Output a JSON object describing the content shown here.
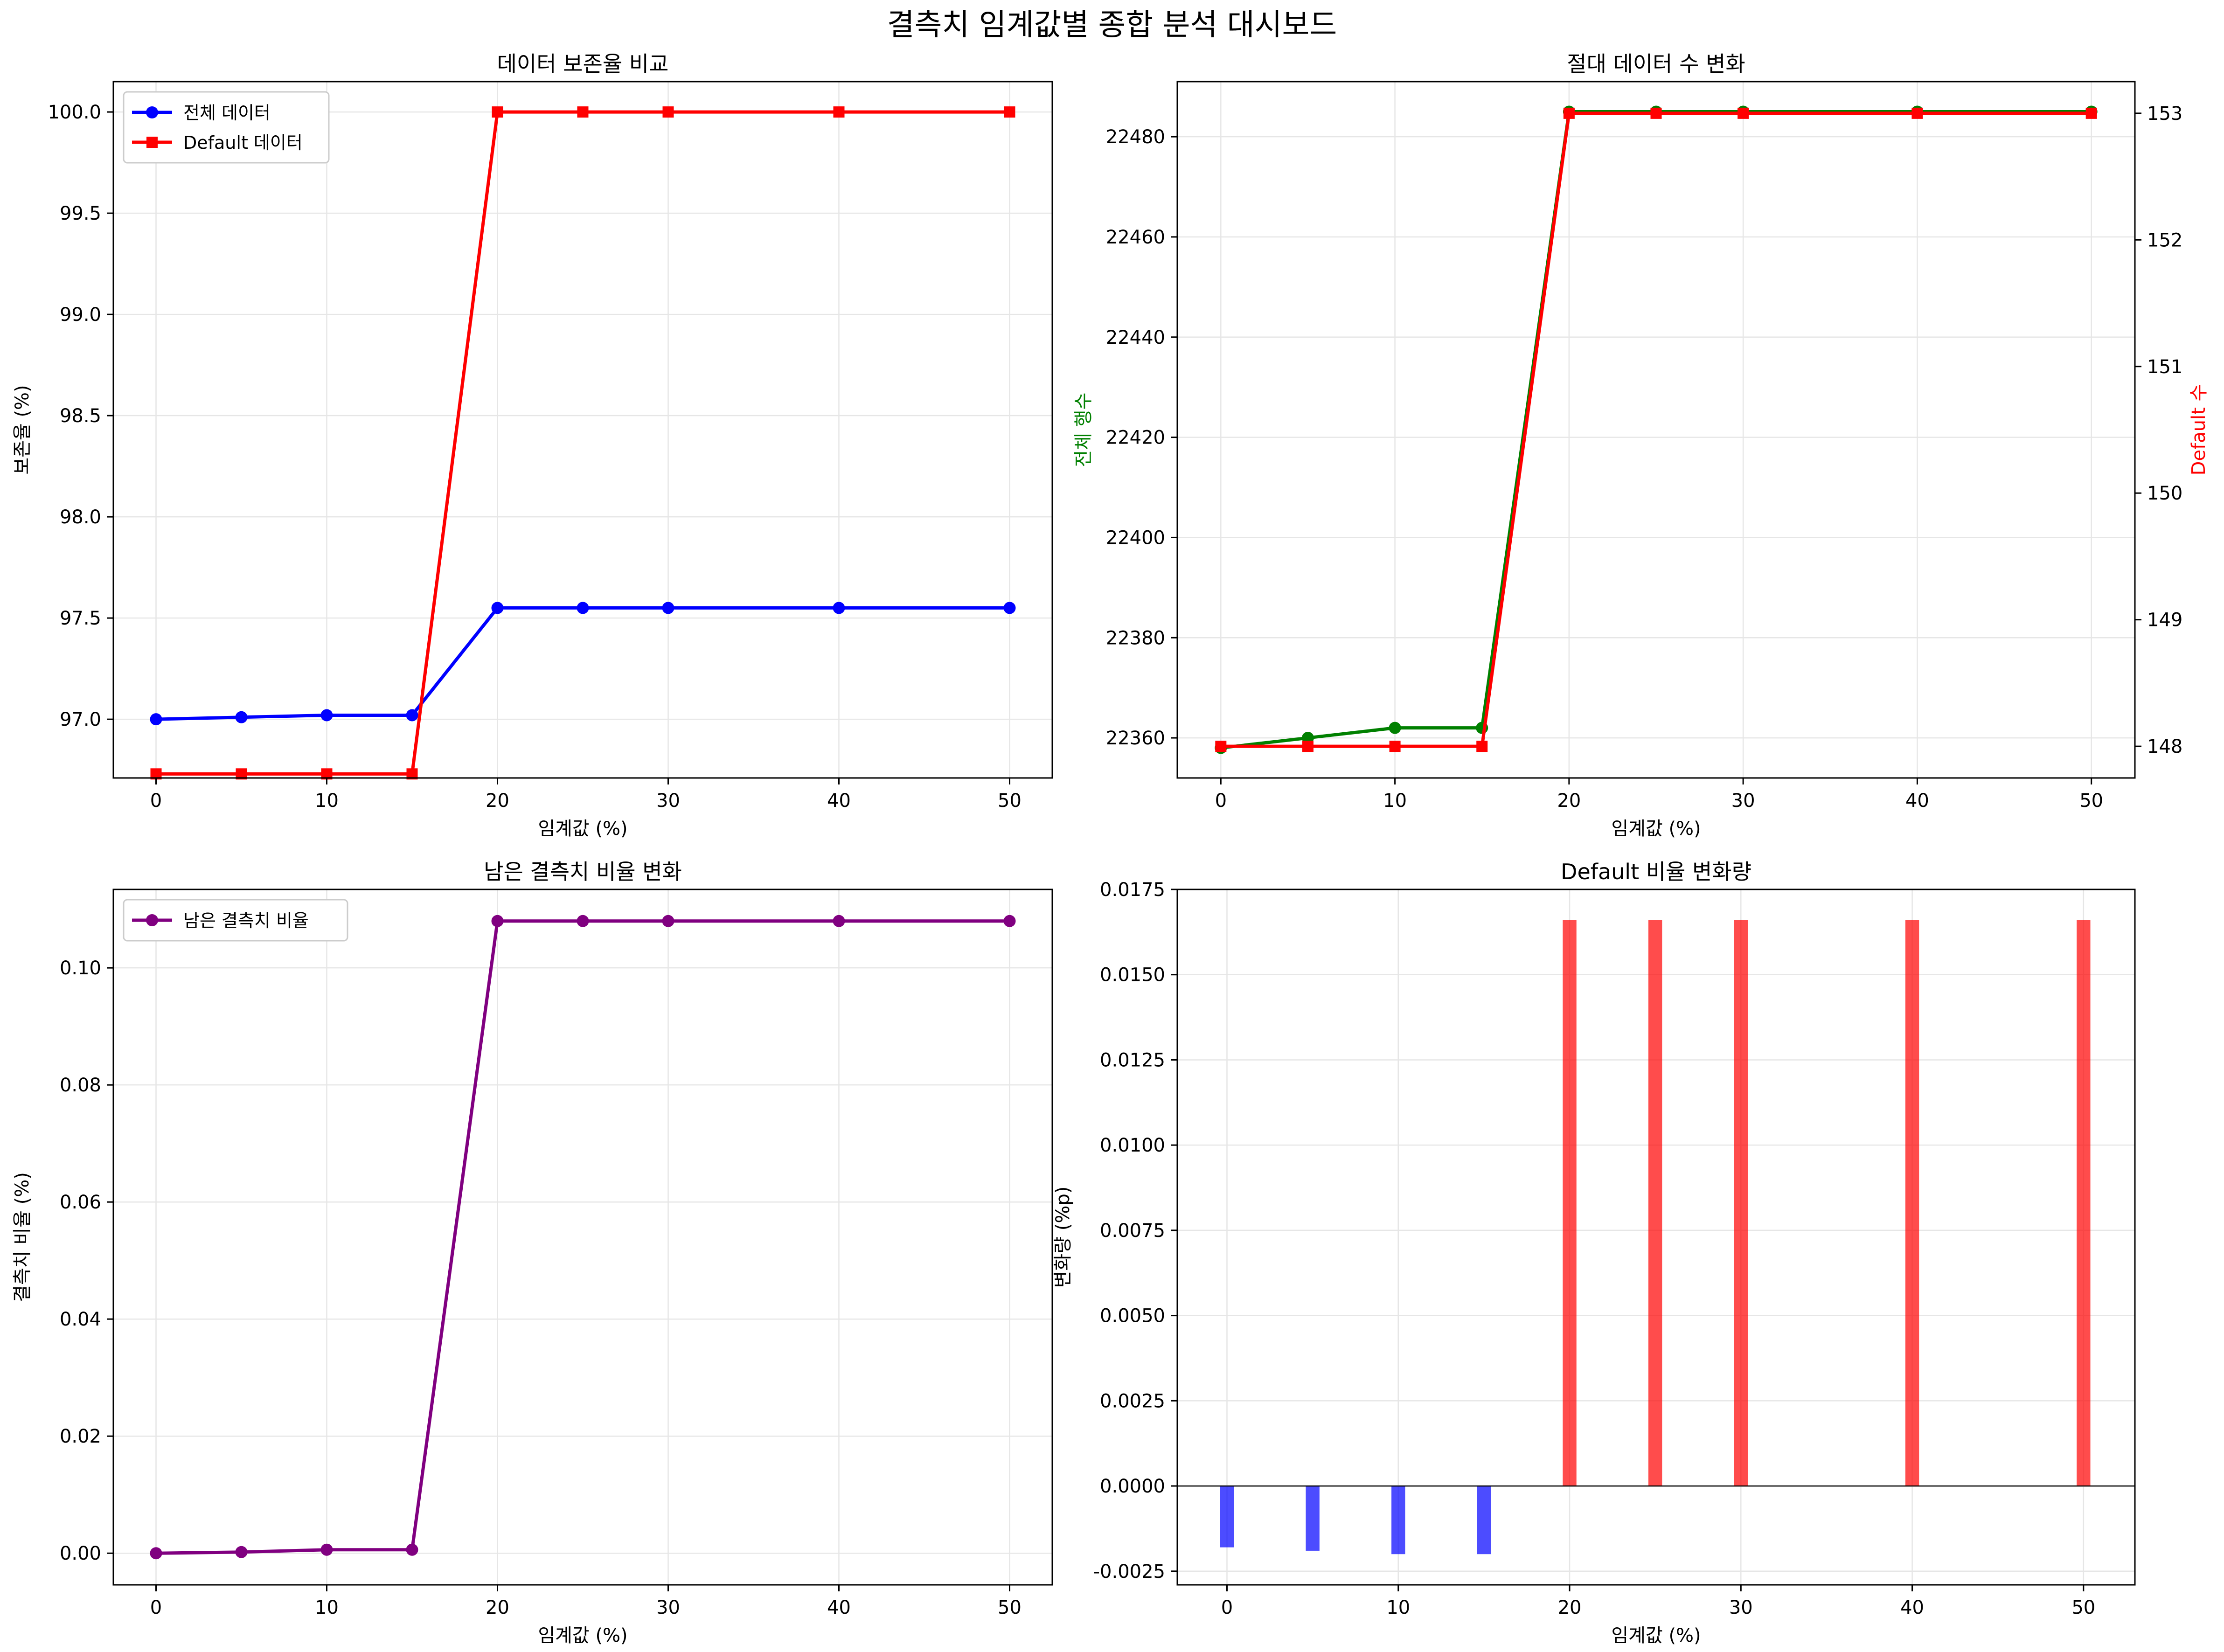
{
  "figure": {
    "title": "결측치 임계값별 종합 분석 대시보드"
  },
  "chart_data": [
    {
      "id": "retention",
      "type": "line",
      "title": "데이터 보존율 비교",
      "xlabel": "임계값 (%)",
      "ylabel": "보존율 (%)",
      "x": [
        0,
        5,
        10,
        15,
        20,
        25,
        30,
        40,
        50
      ],
      "xlim": [
        -2.5,
        52.5
      ],
      "ylim": [
        96.71,
        100.15
      ],
      "xticks": [
        0,
        10,
        20,
        30,
        40,
        50
      ],
      "yticks": [
        97.0,
        97.5,
        98.0,
        98.5,
        99.0,
        99.5,
        100.0
      ],
      "ytick_decimals": 1,
      "grid": true,
      "legend": "top-left",
      "series": [
        {
          "name": "전체 데이터",
          "color": "#0000ff",
          "marker": "circle",
          "values": [
            97.0,
            97.01,
            97.02,
            97.02,
            97.55,
            97.55,
            97.55,
            97.55,
            97.55
          ]
        },
        {
          "name": "Default 데이터",
          "color": "#ff0000",
          "marker": "square",
          "values": [
            96.73,
            96.73,
            96.73,
            96.73,
            100.0,
            100.0,
            100.0,
            100.0,
            100.0
          ]
        }
      ]
    },
    {
      "id": "absolute",
      "type": "line",
      "title": "절대 데이터 수 변화",
      "xlabel": "임계값 (%)",
      "ylabel": "전체 행수",
      "ylabel_color": "#008000",
      "y2label": "Default 수",
      "y2label_color": "#ff0000",
      "x": [
        0,
        5,
        10,
        15,
        20,
        25,
        30,
        40,
        50
      ],
      "xlim": [
        -2.5,
        52.5
      ],
      "ylim": [
        22352,
        22491
      ],
      "y2lim": [
        147.75,
        153.25
      ],
      "xticks": [
        0,
        10,
        20,
        30,
        40,
        50
      ],
      "yticks": [
        22360,
        22380,
        22400,
        22420,
        22440,
        22460,
        22480
      ],
      "y2ticks": [
        148,
        149,
        150,
        151,
        152,
        153
      ],
      "ytick_decimals": 0,
      "grid": true,
      "series": [
        {
          "name": "",
          "axis": "left",
          "color": "#008000",
          "marker": "circle",
          "values": [
            22358,
            22360,
            22362,
            22362,
            22485,
            22485,
            22485,
            22485,
            22485
          ]
        },
        {
          "name": "",
          "axis": "right",
          "color": "#ff0000",
          "marker": "square",
          "values": [
            148,
            148,
            148,
            148,
            153,
            153,
            153,
            153,
            153
          ]
        }
      ]
    },
    {
      "id": "missing",
      "type": "line",
      "title": "남은 결측치 비율 변화",
      "xlabel": "임계값 (%)",
      "ylabel": "결측치 비율 (%)",
      "x": [
        0,
        5,
        10,
        15,
        20,
        25,
        30,
        40,
        50
      ],
      "xlim": [
        -2.5,
        52.5
      ],
      "ylim": [
        -0.0054,
        0.1134
      ],
      "xticks": [
        0,
        10,
        20,
        30,
        40,
        50
      ],
      "yticks": [
        0.0,
        0.02,
        0.04,
        0.06,
        0.08,
        0.1
      ],
      "ytick_decimals": 2,
      "grid": true,
      "legend": "top-left",
      "series": [
        {
          "name": "남은 결측치 비율",
          "color": "#800080",
          "marker": "circle",
          "values": [
            0.0,
            0.0002,
            0.0006,
            0.0006,
            0.108,
            0.108,
            0.108,
            0.108,
            0.108
          ]
        }
      ]
    },
    {
      "id": "change",
      "type": "bar",
      "title": "Default 비율 변화량",
      "xlabel": "임계값 (%)",
      "ylabel": "변화량 (%p)",
      "x": [
        0,
        5,
        10,
        15,
        20,
        25,
        30,
        40,
        50
      ],
      "xlim": [
        -2.9,
        53.0
      ],
      "ylim": [
        -0.0029,
        0.0175
      ],
      "xticks": [
        0,
        10,
        20,
        30,
        40,
        50
      ],
      "yticks": [
        -0.0025,
        0.0,
        0.0025,
        0.005,
        0.0075,
        0.01,
        0.0125,
        0.015,
        0.0175
      ],
      "ytick_decimals": 4,
      "bar_width": 0.8,
      "zero_line": true,
      "grid": true,
      "positive_color": "#ff0000",
      "negative_color": "#0000ff",
      "values": [
        -0.0018,
        -0.0019,
        -0.002,
        -0.002,
        0.0166,
        0.0166,
        0.0166,
        0.0166,
        0.0166
      ]
    }
  ]
}
